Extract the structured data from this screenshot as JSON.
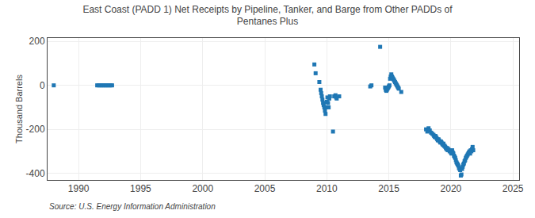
{
  "chart_data": {
    "type": "scatter",
    "title": "East Coast (PADD 1) Net Receipts by Pipeline, Tanker, and Barge from Other PADDs of\nPentanes Plus",
    "ylabel": "Thousand Barrels",
    "annotations": [
      "Source: U.S. Energy Information Administration"
    ],
    "marker": "square",
    "grid": true,
    "xlim": [
      1987.5,
      2025.5
    ],
    "ylim": [
      -430,
      215
    ],
    "yticks": [
      -400,
      -200,
      0,
      200
    ],
    "xticks": [
      1990,
      1995,
      2000,
      2005,
      2010,
      2015,
      2020,
      2025
    ],
    "x": [
      1988.0,
      1991.5,
      1991.6,
      1991.7,
      1991.8,
      1991.9,
      1992.0,
      1992.1,
      1992.2,
      1992.3,
      1992.4,
      1992.5,
      1992.6,
      1992.7,
      2009.0,
      2009.1,
      2009.4,
      2009.5,
      2009.55,
      2009.6,
      2009.65,
      2009.7,
      2009.75,
      2009.8,
      2009.85,
      2009.9,
      2009.95,
      2010.0,
      2010.05,
      2010.1,
      2010.15,
      2010.2,
      2010.25,
      2010.5,
      2010.6,
      2010.7,
      2010.75,
      2010.8,
      2011.0,
      2013.5,
      2013.6,
      2014.3,
      2014.7,
      2014.75,
      2014.8,
      2014.85,
      2014.9,
      2014.95,
      2015.0,
      2015.05,
      2015.1,
      2015.15,
      2015.2,
      2015.25,
      2015.3,
      2015.35,
      2015.4,
      2015.45,
      2015.5,
      2015.55,
      2015.6,
      2015.65,
      2015.7,
      2015.75,
      2015.8,
      2016.0,
      2018.0,
      2018.1,
      2018.2,
      2018.3,
      2018.4,
      2018.5,
      2018.6,
      2018.65,
      2018.7,
      2018.75,
      2018.8,
      2018.85,
      2018.9,
      2018.95,
      2019.0,
      2019.05,
      2019.1,
      2019.15,
      2019.2,
      2019.25,
      2019.3,
      2019.35,
      2019.4,
      2019.45,
      2019.5,
      2019.55,
      2019.6,
      2019.65,
      2019.7,
      2019.75,
      2019.8,
      2019.85,
      2019.9,
      2019.95,
      2020.0,
      2020.05,
      2020.1,
      2020.15,
      2020.2,
      2020.25,
      2020.3,
      2020.35,
      2020.4,
      2020.45,
      2020.5,
      2020.55,
      2020.6,
      2020.65,
      2020.7,
      2020.75,
      2020.8,
      2020.85,
      2020.9,
      2020.95,
      2021.0,
      2021.05,
      2021.1,
      2021.15,
      2021.2,
      2021.25,
      2021.3,
      2021.35,
      2021.4,
      2021.45,
      2021.5,
      2021.55,
      2021.6,
      2021.65,
      2021.7,
      2021.75,
      2021.8
    ],
    "values": [
      0,
      0,
      0,
      0,
      0,
      0,
      0,
      0,
      0,
      0,
      0,
      0,
      0,
      0,
      95,
      55,
      15,
      -20,
      -35,
      -50,
      -65,
      -80,
      -90,
      -100,
      -115,
      -130,
      -100,
      -75,
      -55,
      -80,
      -100,
      -60,
      -50,
      -210,
      -50,
      -45,
      -55,
      -60,
      -50,
      -5,
      0,
      175,
      -10,
      -20,
      -25,
      -20,
      -15,
      -10,
      -5,
      0,
      30,
      40,
      50,
      40,
      35,
      30,
      25,
      20,
      15,
      10,
      5,
      0,
      -5,
      -10,
      -15,
      -30,
      -200,
      -210,
      -195,
      -205,
      -215,
      -220,
      -225,
      -230,
      -235,
      -230,
      -235,
      -240,
      -245,
      -250,
      -245,
      -250,
      -255,
      -260,
      -255,
      -260,
      -265,
      -270,
      -265,
      -275,
      -275,
      -280,
      -285,
      -290,
      -285,
      -295,
      -290,
      -295,
      -300,
      -295,
      -305,
      -310,
      -295,
      -305,
      -310,
      -320,
      -325,
      -330,
      -340,
      -350,
      -355,
      -360,
      -365,
      -375,
      -380,
      -385,
      -410,
      -405,
      -380,
      -370,
      -360,
      -355,
      -345,
      -340,
      -330,
      -325,
      -320,
      -315,
      -310,
      -305,
      -300,
      -310,
      -295,
      -300,
      -290,
      -280,
      -295
    ]
  }
}
